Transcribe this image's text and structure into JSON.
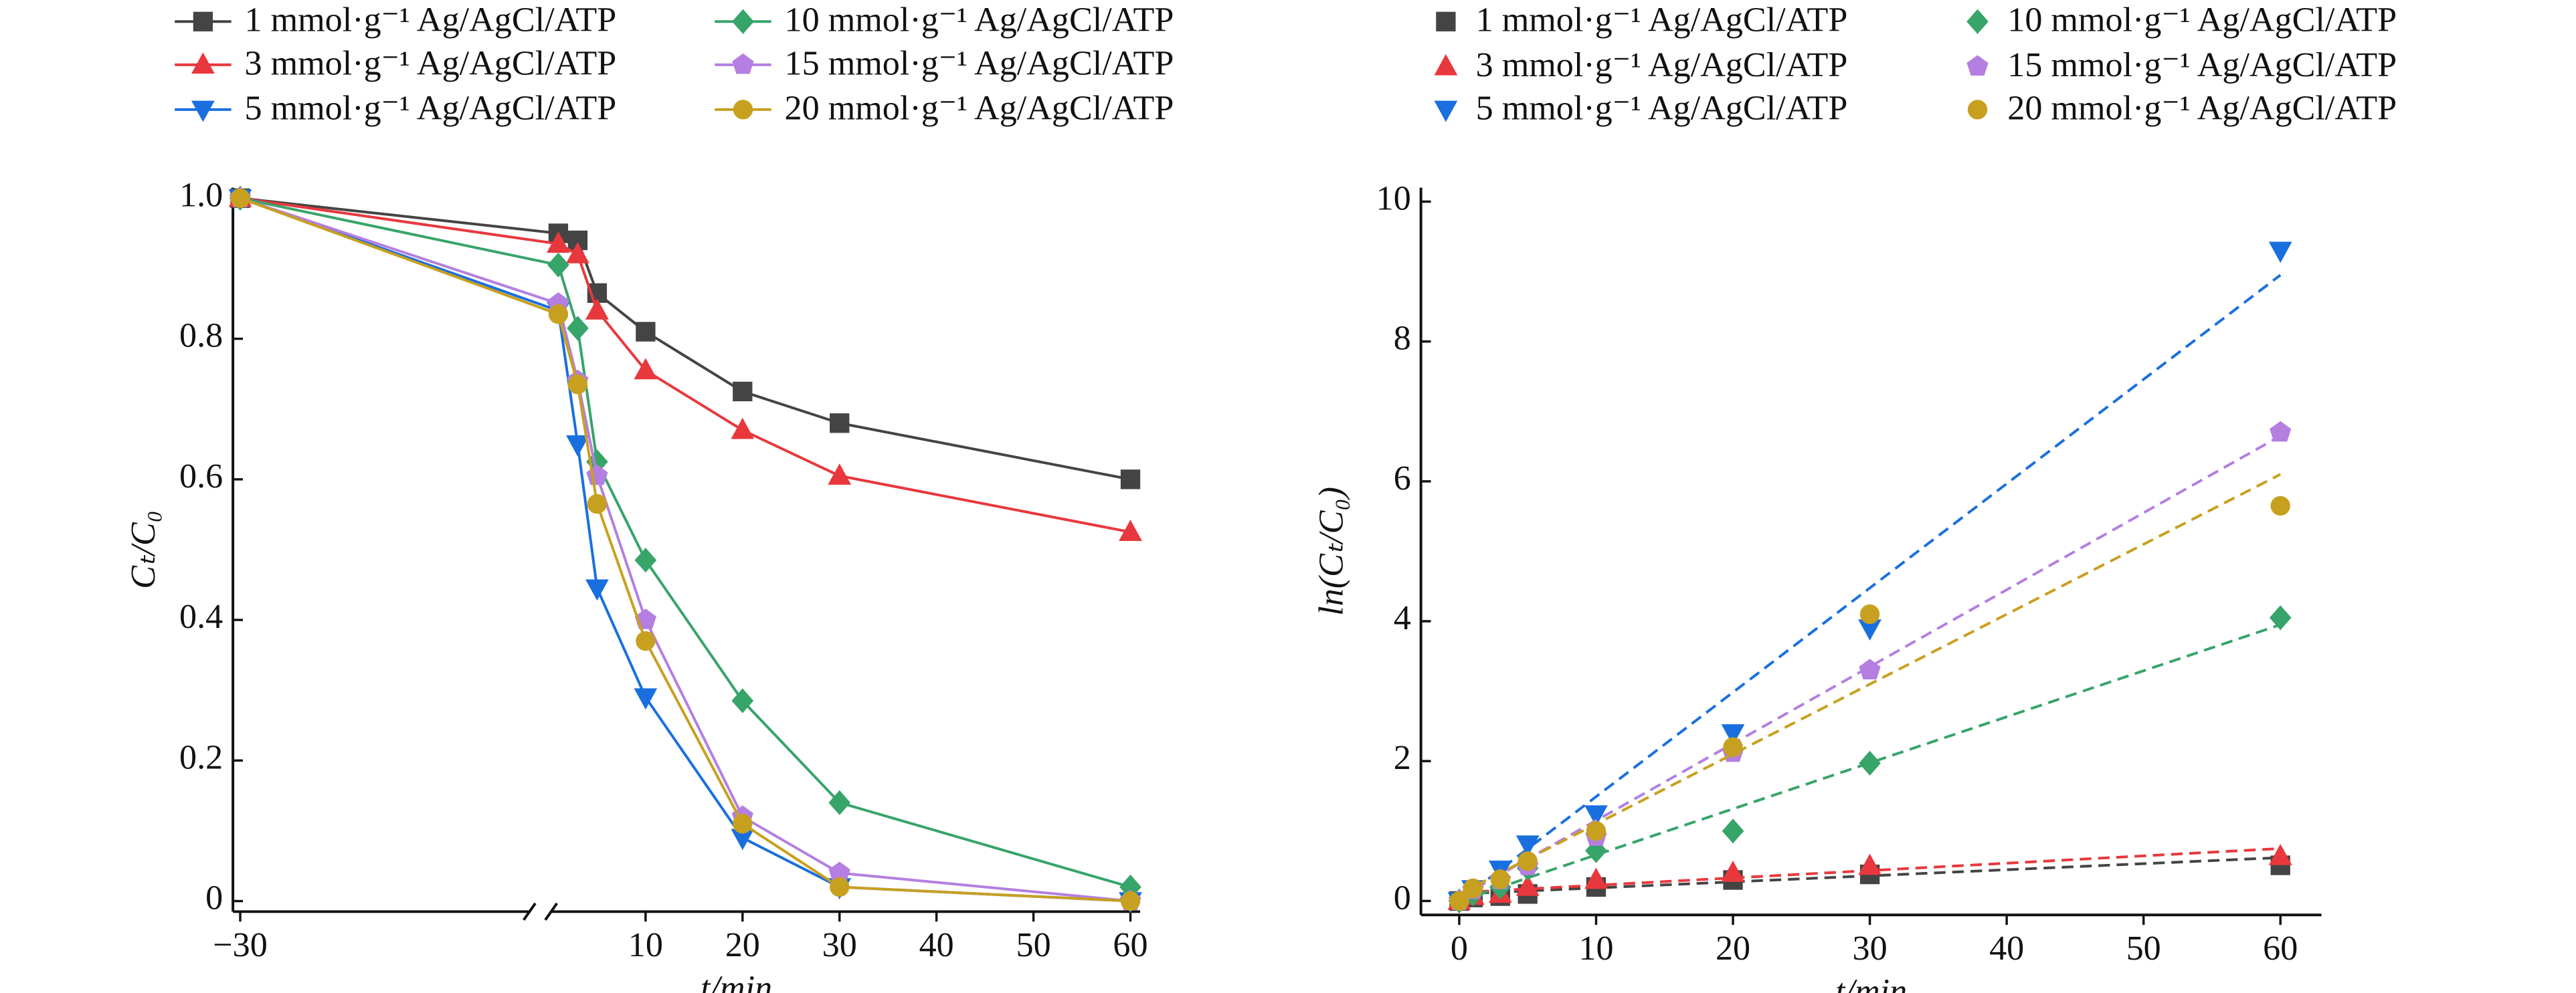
{
  "chart_data": [
    {
      "type": "line",
      "x": [
        -30,
        1,
        3,
        5,
        10,
        20,
        30,
        60
      ],
      "xlim": [
        -30.2,
        61
      ],
      "xbreak": [
        -22,
        0
      ],
      "xticks": [
        {
          "value": -30,
          "label": "−30"
        },
        10,
        20,
        30,
        40,
        50,
        60
      ],
      "ylim": [
        -0.015,
        1.015
      ],
      "yticks": [
        0,
        0.2,
        0.4,
        0.6,
        0.8,
        {
          "value": 1,
          "label": "1.0"
        }
      ],
      "xlabel": "t/min",
      "ylabel": "Cₜ/C₀",
      "series": [
        {
          "name": "1 mmol·g⁻¹ Ag/AgCl/ATP",
          "color": "#444444",
          "marker": "square",
          "values": [
            1.0,
            0.95,
            0.94,
            0.865,
            0.81,
            0.725,
            0.68,
            0.6
          ]
        },
        {
          "name": "3 mmol·g⁻¹ Ag/AgCl/ATP",
          "color": "#e8383d",
          "marker": "triangle-up",
          "values": [
            1.0,
            0.935,
            0.92,
            0.84,
            0.755,
            0.67,
            0.605,
            0.525
          ]
        },
        {
          "name": "5 mmol·g⁻¹ Ag/AgCl/ATP",
          "color": "#1a6fdf",
          "marker": "triangle-down",
          "values": [
            1.0,
            0.84,
            0.65,
            0.445,
            0.29,
            0.09,
            0.02,
            0.0
          ]
        },
        {
          "name": "10 mmol·g⁻¹ Ag/AgCl/ATP",
          "color": "#37a46a",
          "marker": "diamond",
          "values": [
            1.0,
            0.905,
            0.815,
            0.625,
            0.485,
            0.285,
            0.14,
            0.02
          ]
        },
        {
          "name": "15 mmol·g⁻¹ Ag/AgCl/ATP",
          "color": "#b47fe0",
          "marker": "pentagon",
          "values": [
            1.0,
            0.85,
            0.74,
            0.605,
            0.4,
            0.12,
            0.04,
            0.0
          ]
        },
        {
          "name": "20 mmol·g⁻¹ Ag/AgCl/ATP",
          "color": "#c8a020",
          "marker": "circle",
          "values": [
            1.0,
            0.835,
            0.735,
            0.565,
            0.37,
            0.11,
            0.02,
            0.0
          ]
        }
      ]
    },
    {
      "type": "scatter",
      "x": [
        0,
        1,
        3,
        5,
        10,
        20,
        30,
        60
      ],
      "xlim": [
        -2.8,
        63
      ],
      "xticks": [
        0,
        10,
        20,
        30,
        40,
        50,
        60
      ],
      "ylim": [
        -0.2,
        10.2
      ],
      "yticks": [
        0,
        2,
        4,
        6,
        8,
        10
      ],
      "xlabel": "t/min",
      "ylabel": "ln(Cₜ/C₀)",
      "fit_x": [
        0,
        60
      ],
      "series": [
        {
          "name": "1 mmol·g⁻¹ Ag/AgCl/ATP",
          "color": "#444444",
          "marker": "square",
          "values": [
            0,
            0.05,
            0.07,
            0.1,
            0.2,
            0.3,
            0.38,
            0.51
          ],
          "fit": [
            0.1,
            0.62
          ]
        },
        {
          "name": "3 mmol·g⁻¹ Ag/AgCl/ATP",
          "color": "#e8383d",
          "marker": "triangle-up",
          "values": [
            0,
            0.07,
            0.1,
            0.2,
            0.3,
            0.4,
            0.5,
            0.64
          ],
          "fit": [
            0.12,
            0.75
          ]
        },
        {
          "name": "5 mmol·g⁻¹ Ag/AgCl/ATP",
          "color": "#1a6fdf",
          "marker": "triangle-down",
          "values": [
            0,
            0.17,
            0.45,
            0.81,
            1.24,
            2.4,
            3.9,
            9.3
          ],
          "fit": [
            0.0,
            8.95
          ]
        },
        {
          "name": "10 mmol·g⁻¹ Ag/AgCl/ATP",
          "color": "#37a46a",
          "marker": "diamond",
          "values": [
            0,
            0.1,
            0.2,
            0.47,
            0.72,
            1.0,
            1.97,
            4.05
          ],
          "fit": [
            0.0,
            3.95
          ]
        },
        {
          "name": "15 mmol·g⁻¹ Ag/AgCl/ATP",
          "color": "#b47fe0",
          "marker": "pentagon",
          "values": [
            0,
            0.16,
            0.3,
            0.5,
            0.92,
            2.12,
            3.3,
            6.7
          ],
          "fit": [
            0.05,
            6.65
          ]
        },
        {
          "name": "20 mmol·g⁻¹ Ag/AgCl/ATP",
          "color": "#c8a020",
          "marker": "circle",
          "values": [
            0,
            0.18,
            0.31,
            0.57,
            1.0,
            2.2,
            4.1,
            5.65
          ],
          "fit": [
            0.1,
            6.1
          ]
        }
      ]
    }
  ]
}
